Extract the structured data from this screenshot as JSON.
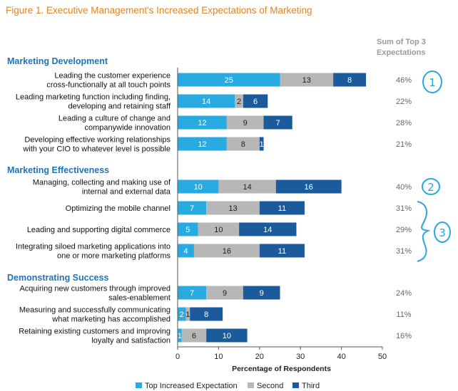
{
  "title": "Figure 1. Executive Management's Increased Expectations of Marketing",
  "sum_header": [
    "Sum of Top 3",
    "Expectations"
  ],
  "colors": {
    "title": "#e5831f",
    "section": "#1f73b9",
    "top": "#29abe2",
    "second": "#b7b7b7",
    "third": "#1b5b9c",
    "annotation": "#29a8e0"
  },
  "chart_data": {
    "type": "bar",
    "orientation": "horizontal",
    "stacked": true,
    "xlabel": "Percentage of Respondents",
    "xlim": [
      0,
      50
    ],
    "xticks": [
      "0",
      "10",
      "20",
      "30",
      "40",
      "50"
    ],
    "grid": false,
    "legend_placement": "bottom",
    "series": [
      {
        "name": "Top Increased Expectation"
      },
      {
        "name": "Second"
      },
      {
        "name": "Third"
      }
    ],
    "sections": [
      {
        "label": "Marketing Development",
        "items": [
          {
            "label": [
              "Leading the customer experience",
              "cross-functionally at all touch points"
            ],
            "values": [
              25,
              13,
              8
            ],
            "sum": "46%"
          },
          {
            "label": [
              "Leading marketing function including finding,",
              "developing and retaining staff"
            ],
            "values": [
              14,
              2,
              6
            ],
            "sum": "22%"
          },
          {
            "label": [
              "Leading a culture of change and",
              "companywide innovation"
            ],
            "values": [
              12,
              9,
              7
            ],
            "sum": "28%"
          },
          {
            "label": [
              "Developing effective working relationships",
              "with your CIO to whatever level is possible"
            ],
            "values": [
              12,
              8,
              1
            ],
            "sum": "21%"
          }
        ]
      },
      {
        "label": "Marketing Effectiveness",
        "items": [
          {
            "label": [
              "Managing, collecting and making use of",
              "internal and external data"
            ],
            "values": [
              10,
              14,
              16
            ],
            "sum": "40%"
          },
          {
            "label": [
              "Optimizing the mobile channel"
            ],
            "values": [
              7,
              13,
              11
            ],
            "sum": "31%"
          },
          {
            "label": [
              "Leading and supporting digital commerce"
            ],
            "values": [
              5,
              10,
              14
            ],
            "sum": "29%"
          },
          {
            "label": [
              "Integrating siloed marketing applications into",
              "one or more marketing platforms"
            ],
            "values": [
              4,
              16,
              11
            ],
            "sum": "31%"
          }
        ]
      },
      {
        "label": "Demonstrating Success",
        "items": [
          {
            "label": [
              "Acquiring new customers through improved",
              "sales-enablement"
            ],
            "values": [
              7,
              9,
              9
            ],
            "sum": "24%"
          },
          {
            "label": [
              "Measuring and successfully communicating",
              "what marketing has accomplished"
            ],
            "values": [
              2,
              1,
              8
            ],
            "sum": "11%"
          },
          {
            "label": [
              "Retaining existing customers and improving",
              "loyalty and satisfaction"
            ],
            "values": [
              1,
              6,
              10
            ],
            "sum": "16%"
          }
        ]
      }
    ],
    "annotations": [
      {
        "text": "1",
        "shape": "circle"
      },
      {
        "text": "2",
        "shape": "circle"
      },
      {
        "text": "3",
        "shape": "circle-with-brace"
      }
    ]
  }
}
